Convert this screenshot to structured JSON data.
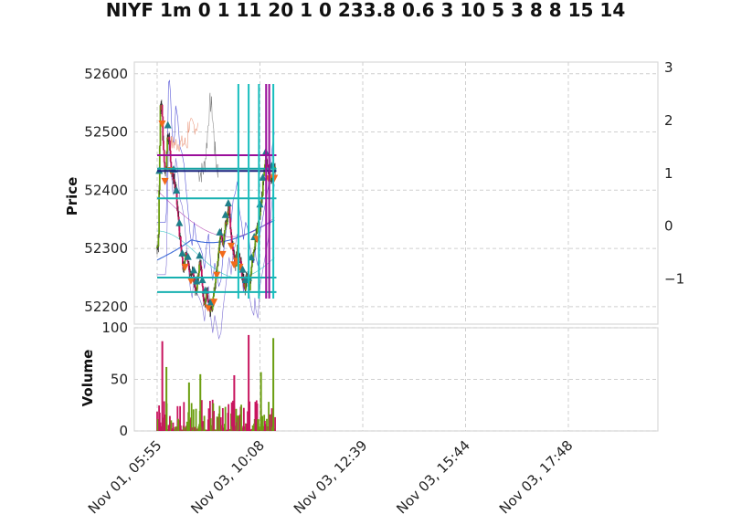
{
  "chart_data": {
    "type": "candlestick",
    "title": "NIYF 1m 0 1 11 20 1 0 233.8 0.6 3 10 5 3 8 8 15 14",
    "x_tick_labels": [
      "Nov 01, 05:55",
      "Nov 03, 10:08",
      "Nov 03, 12:39",
      "Nov 03, 15:44",
      "Nov 03, 17:48"
    ],
    "price_panel": {
      "ylabel": "Price",
      "ylim": [
        52170,
        52620
      ],
      "yticks": [
        52200,
        52300,
        52400,
        52500,
        52600
      ],
      "secondary_ylim": [
        -1.85,
        3.1
      ],
      "secondary_yticks": [
        -1,
        0,
        1,
        2,
        3
      ],
      "horizontal_lines": [
        {
          "value": 52460,
          "color": "#9a0e9a"
        },
        {
          "value": 52437,
          "color": "#17a3a3"
        },
        {
          "value": 52433,
          "color": "#1a237e"
        },
        {
          "value": 52386,
          "color": "#17b0b0"
        },
        {
          "value": 52250,
          "color": "#17b0b0"
        },
        {
          "value": 52225,
          "color": "#17b0b0"
        }
      ],
      "vertical_line_ticks": [
        {
          "tick": 0.79,
          "color": "#17bebe"
        },
        {
          "tick": 0.89,
          "color": "#17bebe"
        },
        {
          "tick": 0.99,
          "color": "#17bebe"
        },
        {
          "tick": 1.06,
          "color": "#9a0e9a"
        },
        {
          "tick": 1.09,
          "color": "#9a0e9a"
        },
        {
          "tick": 1.13,
          "color": "#17bebe"
        }
      ],
      "close_path": [
        [
          0,
          52300
        ],
        [
          0.012,
          52320
        ],
        [
          0.03,
          52540
        ],
        [
          0.045,
          52545
        ],
        [
          0.06,
          52470
        ],
        [
          0.075,
          52430
        ],
        [
          0.09,
          52450
        ],
        [
          0.1,
          52500
        ],
        [
          0.12,
          52480
        ],
        [
          0.14,
          52430
        ],
        [
          0.16,
          52420
        ],
        [
          0.18,
          52400
        ],
        [
          0.2,
          52360
        ],
        [
          0.22,
          52320
        ],
        [
          0.24,
          52280
        ],
        [
          0.26,
          52260
        ],
        [
          0.28,
          52300
        ],
        [
          0.3,
          52270
        ],
        [
          0.33,
          52260
        ],
        [
          0.36,
          52245
        ],
        [
          0.38,
          52220
        ],
        [
          0.4,
          52260
        ],
        [
          0.42,
          52280
        ],
        [
          0.44,
          52230
        ],
        [
          0.46,
          52200
        ],
        [
          0.48,
          52230
        ],
        [
          0.5,
          52210
        ],
        [
          0.52,
          52190
        ],
        [
          0.54,
          52200
        ],
        [
          0.56,
          52240
        ],
        [
          0.58,
          52270
        ],
        [
          0.6,
          52300
        ],
        [
          0.62,
          52330
        ],
        [
          0.64,
          52300
        ],
        [
          0.66,
          52340
        ],
        [
          0.68,
          52350
        ],
        [
          0.7,
          52370
        ],
        [
          0.72,
          52320
        ],
        [
          0.74,
          52300
        ],
        [
          0.76,
          52270
        ],
        [
          0.78,
          52300
        ],
        [
          0.8,
          52290
        ],
        [
          0.82,
          52260
        ],
        [
          0.84,
          52240
        ],
        [
          0.86,
          52230
        ],
        [
          0.87,
          52260
        ],
        [
          0.88,
          52240
        ],
        [
          0.9,
          52225
        ],
        [
          0.92,
          52280
        ],
        [
          0.94,
          52300
        ],
        [
          0.96,
          52320
        ],
        [
          0.98,
          52340
        ],
        [
          1.0,
          52360
        ],
        [
          1.02,
          52390
        ],
        [
          1.04,
          52430
        ],
        [
          1.06,
          52455
        ],
        [
          1.08,
          52440
        ],
        [
          1.1,
          52420
        ],
        [
          1.12,
          52430
        ],
        [
          1.15,
          52440
        ]
      ]
    },
    "volume_panel": {
      "ylabel": "Volume",
      "ylim": [
        0,
        100
      ],
      "yticks": [
        0,
        50,
        100
      ],
      "up_color": "#6b9e10",
      "down_color": "#c8155f",
      "spikes": [
        {
          "tick": 0.05,
          "value": 87,
          "color": "#c8155f"
        },
        {
          "tick": 0.09,
          "value": 62,
          "color": "#6b9e10"
        },
        {
          "tick": 0.42,
          "value": 55,
          "color": "#6b9e10"
        },
        {
          "tick": 0.31,
          "value": 47,
          "color": "#6b9e10"
        },
        {
          "tick": 0.75,
          "value": 54,
          "color": "#c8155f"
        },
        {
          "tick": 0.89,
          "value": 93,
          "color": "#c8155f"
        },
        {
          "tick": 1.01,
          "value": 57,
          "color": "#6b9e10"
        },
        {
          "tick": 1.13,
          "value": 90,
          "color": "#6b9e10"
        }
      ]
    },
    "grid": true
  }
}
